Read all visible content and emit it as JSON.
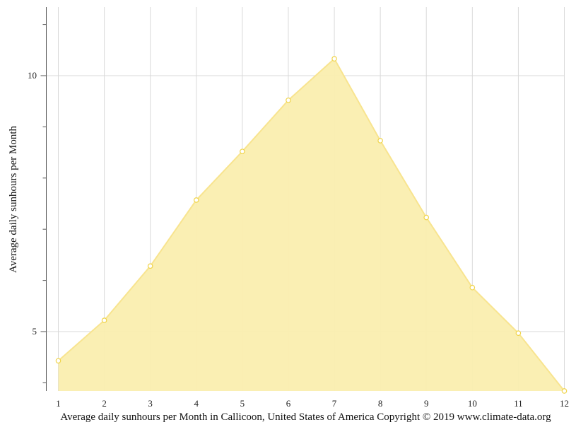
{
  "chart_data": {
    "type": "area",
    "x": [
      1,
      2,
      3,
      4,
      5,
      6,
      7,
      8,
      9,
      10,
      11,
      12
    ],
    "values": [
      4.43,
      5.22,
      6.28,
      7.57,
      8.52,
      9.52,
      10.33,
      8.73,
      7.23,
      5.86,
      4.97,
      3.84
    ],
    "ylabel": "Average daily sunhours per Month",
    "caption": "Average daily sunhours per Month in Callicoon, United States of America Copyright © 2019 www.climate-data.org",
    "x_tick_labels": [
      "1",
      "2",
      "3",
      "4",
      "5",
      "6",
      "7",
      "8",
      "9",
      "10",
      "11",
      "12"
    ],
    "y_tick_labels": [
      "5",
      "10"
    ],
    "y_major_ticks": [
      5,
      10
    ],
    "y_minor_ticks": [
      4,
      6,
      7,
      8,
      9,
      11
    ],
    "ylim": [
      3.84,
      11.32
    ],
    "xlim": [
      1,
      12
    ],
    "grid": true,
    "colors": {
      "fill": "#faeeaf",
      "line": "#f8e48f",
      "marker_stroke": "#f0d44a",
      "grid": "#d9d9d9",
      "axis": "#555555"
    }
  }
}
